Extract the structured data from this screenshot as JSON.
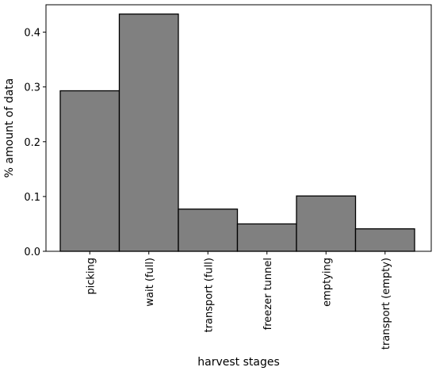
{
  "chart_data": {
    "type": "bar",
    "categories": [
      "picking",
      "wait (full)",
      "transport (full)",
      "freezer tunnel",
      "emptying",
      "transport (empty)"
    ],
    "values": [
      0.293,
      0.433,
      0.077,
      0.05,
      0.101,
      0.041
    ],
    "xlabel": "harvest stages",
    "ylabel": "% amount of data",
    "ylim": [
      0,
      0.45
    ],
    "yticks": [
      0.0,
      0.1,
      0.2,
      0.3,
      0.4
    ],
    "ytick_labels": [
      "0.0",
      "0.1",
      "0.2",
      "0.3",
      "0.4"
    ],
    "bar_color": "#808080",
    "edge_color": "#000000",
    "grid": false,
    "legend": "none"
  }
}
